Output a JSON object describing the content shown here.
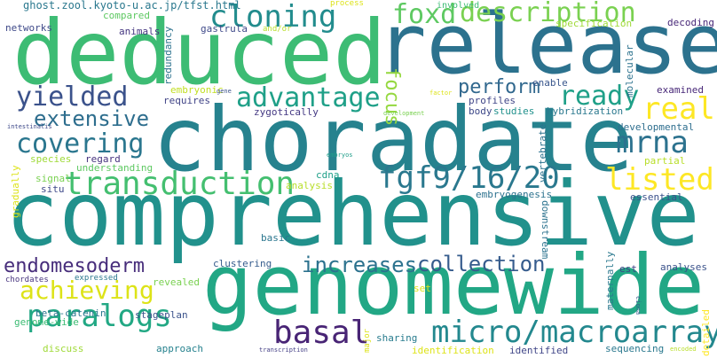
{
  "words": [
    {
      "text": "comprehensive",
      "color": "#21918c"
    },
    {
      "text": "choradate",
      "color": "#26828e"
    },
    {
      "text": "release",
      "color": "#2c728e"
    },
    {
      "text": "genomewide",
      "color": "#22a785"
    },
    {
      "text": "deduced",
      "color": "#3dbc74"
    },
    {
      "text": "micro/macroarray",
      "color": "#23888e"
    },
    {
      "text": "transduction",
      "color": "#44bf70"
    },
    {
      "text": "fgf9/16/20",
      "color": "#2a788e"
    },
    {
      "text": "cloning",
      "color": "#228c8d"
    },
    {
      "text": "description",
      "color": "#7ad151"
    },
    {
      "text": "advantage",
      "color": "#1fa088"
    },
    {
      "text": "covering",
      "color": "#2a768e"
    },
    {
      "text": "paralogs",
      "color": "#22a884"
    },
    {
      "text": "basal",
      "color": "#482475"
    },
    {
      "text": "achieving",
      "color": "#dde318"
    },
    {
      "text": "endomesoderm",
      "color": "#472d7b"
    },
    {
      "text": "collection",
      "color": "#365c8d"
    },
    {
      "text": "increases",
      "color": "#2c728e"
    },
    {
      "text": "yielded",
      "color": "#3b528b"
    },
    {
      "text": "extensive",
      "color": "#2e6e8e"
    },
    {
      "text": "foxd",
      "color": "#5ec962"
    },
    {
      "text": "perform",
      "color": "#31688e"
    },
    {
      "text": "ready",
      "color": "#1fa088"
    },
    {
      "text": "listed",
      "color": "#fde725"
    },
    {
      "text": "mrna",
      "color": "#2c728e"
    },
    {
      "text": "real",
      "color": "#fde725"
    },
    {
      "text": "focus",
      "color": "#95d840"
    },
    {
      "text": "ghost.zool.kyoto-u.ac.jp/tfst.html",
      "color": "#2a788e"
    },
    {
      "text": "networks",
      "color": "#3e4989"
    },
    {
      "text": "animals",
      "color": "#453781"
    },
    {
      "text": "gastrula",
      "color": "#3e4989"
    },
    {
      "text": "and/or",
      "color": "#b8de29"
    },
    {
      "text": "redundancy",
      "color": "#2c728e"
    },
    {
      "text": "compared",
      "color": "#5ec962"
    },
    {
      "text": "process",
      "color": "#dde318"
    },
    {
      "text": "involved",
      "color": "#3dbc74"
    },
    {
      "text": "specification",
      "color": "#a0da39"
    },
    {
      "text": "decoding",
      "color": "#482878"
    },
    {
      "text": "molecular",
      "color": "#2c728e"
    },
    {
      "text": "embryonic",
      "color": "#c2df23"
    },
    {
      "text": "requires",
      "color": "#414487"
    },
    {
      "text": "gene",
      "color": "#3b528b"
    },
    {
      "text": "factor",
      "color": "#dde318"
    },
    {
      "text": "enable",
      "color": "#39568c"
    },
    {
      "text": "examined",
      "color": "#482878"
    },
    {
      "text": "profiles",
      "color": "#404688"
    },
    {
      "text": "body",
      "color": "#3e4989"
    },
    {
      "text": "studies",
      "color": "#21918c"
    },
    {
      "text": "hybridization",
      "color": "#2a788e"
    },
    {
      "text": "zygotically",
      "color": "#443983"
    },
    {
      "text": "development",
      "color": "#7ad151"
    },
    {
      "text": "developmental",
      "color": "#2e6e8e"
    },
    {
      "text": "intestinalis",
      "color": "#3e4989"
    },
    {
      "text": "regard",
      "color": "#46337e"
    },
    {
      "text": "species",
      "color": "#a0da39"
    },
    {
      "text": "understanding",
      "color": "#5ec962"
    },
    {
      "text": "embryos",
      "color": "#1f9e89"
    },
    {
      "text": "vertebrate",
      "color": "#2c728e"
    },
    {
      "text": "partial",
      "color": "#b8de29"
    },
    {
      "text": "signal",
      "color": "#7ad151"
    },
    {
      "text": "cdna",
      "color": "#1fa088"
    },
    {
      "text": "analysis",
      "color": "#b8de29"
    },
    {
      "text": "embryogenesis",
      "color": "#2c728e"
    },
    {
      "text": "essential",
      "color": "#3b528b"
    },
    {
      "text": "gradually",
      "color": "#dde318"
    },
    {
      "text": "situ",
      "color": "#3e4989"
    },
    {
      "text": "downstream",
      "color": "#2c728e"
    },
    {
      "text": "basic",
      "color": "#2a768e"
    },
    {
      "text": "clustering",
      "color": "#365c8d"
    },
    {
      "text": "est",
      "color": "#414487"
    },
    {
      "text": "analyses",
      "color": "#3b528b"
    },
    {
      "text": "chordates",
      "color": "#46337e"
    },
    {
      "text": "expressed",
      "color": "#2a788e"
    },
    {
      "text": "revealed",
      "color": "#7ad151"
    },
    {
      "text": "maternally",
      "color": "#2a788e"
    },
    {
      "text": "beta-catenin",
      "color": "#2a768e"
    },
    {
      "text": "stageplan",
      "color": "#3b528b"
    },
    {
      "text": "set",
      "color": "#dde318"
    },
    {
      "text": "genome-wide",
      "color": "#3dbc74"
    },
    {
      "text": "discuss",
      "color": "#a0da39"
    },
    {
      "text": "approach",
      "color": "#26828e"
    },
    {
      "text": "major",
      "color": "#dde318"
    },
    {
      "text": "sharing",
      "color": "#287c8e"
    },
    {
      "text": "identification",
      "color": "#dde318"
    },
    {
      "text": "identified",
      "color": "#404688"
    },
    {
      "text": "sequencing",
      "color": "#2a788e"
    },
    {
      "text": "transcription",
      "color": "#433e85"
    },
    {
      "text": "encoded",
      "color": "#b8de29"
    },
    {
      "text": "ciona",
      "color": "#38588c"
    },
    {
      "text": "detailed",
      "color": "#fde725"
    }
  ]
}
